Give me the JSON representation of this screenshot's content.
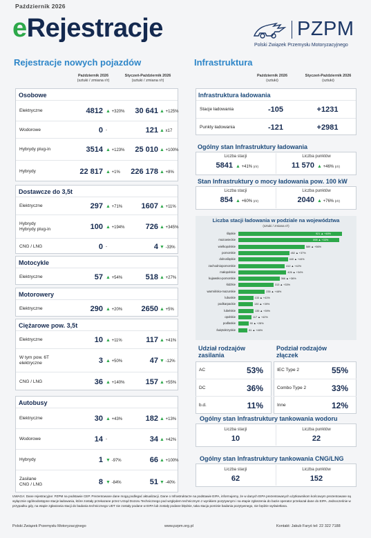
{
  "header": {
    "month": "Październik 2026",
    "title_e": "e",
    "title_rest": "Rejestracje",
    "logo_name": "PZPM",
    "logo_sub": "Polski Związek Przemysłu Motoryzacyjnego"
  },
  "left": {
    "title": "Rejestracje nowych pojazdów",
    "col1": {
      "h": "Październik 2026",
      "s": "(sztuki / zmiana r/r)"
    },
    "col2": {
      "h": "Styczeń-Październik 2026",
      "s": "(sztuki / zmiana r/r)"
    },
    "groups": [
      {
        "title": "Osobowe",
        "rows": [
          {
            "label": "Elektryczne",
            "v1": "4812",
            "c1": "+320%",
            "v2": "30 641",
            "c2": "+125%"
          },
          {
            "label": "Wodorowe",
            "v1": "0",
            "c1": "-",
            "v2": "121",
            "c2": "x17"
          },
          {
            "label": "Hybrydy plug-in",
            "v1": "3514",
            "c1": "+123%",
            "v2": "25 010",
            "c2": "+100%"
          },
          {
            "label": "Hybrydy",
            "v1": "22 817",
            "c1": "+1%",
            "v2": "226 178",
            "c2": "+8%"
          }
        ]
      },
      {
        "title": "Dostawcze do 3,5t",
        "rows": [
          {
            "label": "Elektryczne",
            "v1": "297",
            "c1": "+71%",
            "v2": "1607",
            "c2": "+11%"
          },
          {
            "label": "Hybrydy\nHybrydy plug-in",
            "v1": "100",
            "c1": "+194%",
            "v2": "726",
            "c2": "+345%"
          },
          {
            "label": "CNG / LNG",
            "v1": "0",
            "c1": "-",
            "v2": "4",
            "c2": "-33%"
          }
        ]
      },
      {
        "title": "Motocykle",
        "rows": [
          {
            "label": "Elektryczne",
            "v1": "57",
            "c1": "+54%",
            "v2": "518",
            "c2": "+27%"
          }
        ]
      },
      {
        "title": "Motorowery",
        "rows": [
          {
            "label": "Elektryczne",
            "v1": "290",
            "c1": "+20%",
            "v2": "2650",
            "c2": "+5%"
          }
        ]
      },
      {
        "title": "Ciężarowe pow. 3,5t",
        "rows": [
          {
            "label": "Elektryczne",
            "v1": "10",
            "c1": "+11%",
            "v2": "117",
            "c2": "+41%"
          },
          {
            "label": "W tym pow. 6T\nelektryczne",
            "v1": "3",
            "c1": "+50%",
            "v2": "47",
            "c2": "-12%"
          },
          {
            "label": "CNG / LNG",
            "v1": "36",
            "c1": "+140%",
            "v2": "157",
            "c2": "+55%"
          }
        ]
      },
      {
        "title": "Autobusy",
        "rows": [
          {
            "label": "Elektryczne",
            "v1": "30",
            "c1": "+43%",
            "v2": "182",
            "c2": "+13%"
          },
          {
            "label": "Wodorowe",
            "v1": "14",
            "c1": "-",
            "v2": "34",
            "c2": "+42%"
          },
          {
            "label": "Hybrydy",
            "v1": "1",
            "c1": "-97%",
            "v2": "66",
            "c2": "+100%"
          },
          {
            "label": "Zasilane\nCNG / LNG",
            "v1": "8",
            "c1": "-84%",
            "v2": "51",
            "c2": "-40%"
          }
        ]
      }
    ]
  },
  "right": {
    "title": "Infrastruktura",
    "col1": {
      "h": "Październik 2026",
      "s": "(sztuki)"
    },
    "col2": {
      "h": "Styczeń-Październik 2026",
      "s": "(sztuki)"
    },
    "infra": {
      "title": "Infrastruktura  ładowania",
      "rows": [
        {
          "label": "Stacje ładowania",
          "v1": "-105",
          "v2": "+1231"
        },
        {
          "label": "Punkty ładowania",
          "v1": "-121",
          "v2": "+2981"
        }
      ]
    },
    "ogolny": {
      "title": "Ogólny stan Infrastruktury ładowania",
      "l1": "Liczba stacji",
      "v1": "5841",
      "c1": "+41%",
      "l2": "Liczba punktów",
      "v2": "11 570",
      "c2": "+46%",
      "rr": "(r/r)"
    },
    "moc": {
      "title": "Stan Infrastruktury o mocy ładowania pow. 100 kW",
      "l1": "Liczba stacji",
      "v1": "854",
      "c1": "+60%",
      "l2": "Liczba punktów",
      "v2": "2040",
      "c2": "+76%",
      "rr": "(r/r)"
    },
    "zasilania": {
      "title1": "Udział rodzajów",
      "title2": "zasilania",
      "rows": [
        {
          "label": "AC",
          "v": "53%"
        },
        {
          "label": "DC",
          "v": "36%"
        },
        {
          "label": "b.d.",
          "v": "11%"
        }
      ]
    },
    "zlaczek": {
      "title1": "Podział rodzajów",
      "title2": "złączek",
      "rows": [
        {
          "label": "IEC Type 2",
          "v": "55%"
        },
        {
          "label": "Combo Type 2",
          "v": "33%"
        },
        {
          "label": "Inne",
          "v": "12%"
        }
      ]
    },
    "wodor": {
      "title": "Ogólny stan Infrastruktury tankowania wodoru",
      "l1": "Liczba stacji",
      "v1": "10",
      "l2": "Liczba punktów",
      "v2": "22"
    },
    "cng": {
      "title": "Ogólny stan Infrastruktury tankowania CNG/LNG",
      "l1": "Liczba stacji",
      "v1": "62",
      "l2": "Liczba punktów",
      "v2": "152"
    }
  },
  "chart_data": {
    "type": "bar",
    "title": "Liczba stacji ładowania w podziale na województwa",
    "subtitle": "(sztuki / zmiana r/r)",
    "categories": [
      "śląskie",
      "mazowieckie",
      "wielkopolskie",
      "pomorskie",
      "dolnośląskie",
      "zachodniopomorskie",
      "małopolskie",
      "kujawsko-pomorskie",
      "łódzkie",
      "warmińsko-mazurskie",
      "lubuskie",
      "podkarpackie",
      "lubelskie",
      "opolskie",
      "podlaskie",
      "świętokrzyskie"
    ],
    "values": [
      921,
      898,
      589,
      452,
      440,
      412,
      426,
      366,
      313,
      235,
      133,
      130,
      135,
      117,
      90,
      81
    ],
    "changes": [
      "+48%",
      "+33%",
      "+56%",
      "+37%",
      "+44%",
      "+42%",
      "+34%",
      "+36%",
      "+33%",
      "+48%",
      "+41%",
      "+39%",
      "+39%",
      "+42%",
      "+28%",
      "+46%"
    ]
  },
  "footnote": "UWAGA: Dane rejestracyjne: PZPM na podstawie CEP. Prezentowane dane mogą podlegać aktualizacji. Dane o Infrastrukturze na podstawie EIPA, informujemy, że w danych EIPA prezentowanych użytkownikom końcowym prezentowane są wyłącznie ogólnodostępne stacje ładowania, które zostały przekazane przez Urząd Dozoru Technicznego pod względem technicznym z wynikiem pozytywnym i na etapie zgłoszenia do bazie operator przekazał dane do EIPA. Jednocześnie w przypadku gdy, na etapie zgłaszania stacji do badania technicznego UDT nie zostały podane w EIPA lub zostały podane błędnie, taka stacja pominie badania pozytywnego, nie będzie wyświetlana.",
  "footer": {
    "org": "Polski Związek Przemysłu Motoryzacyjnego",
    "url": "www.pzpm.org.pl",
    "contact": "Kontakt: Jakub Faryś tel: 22 322 7188"
  }
}
